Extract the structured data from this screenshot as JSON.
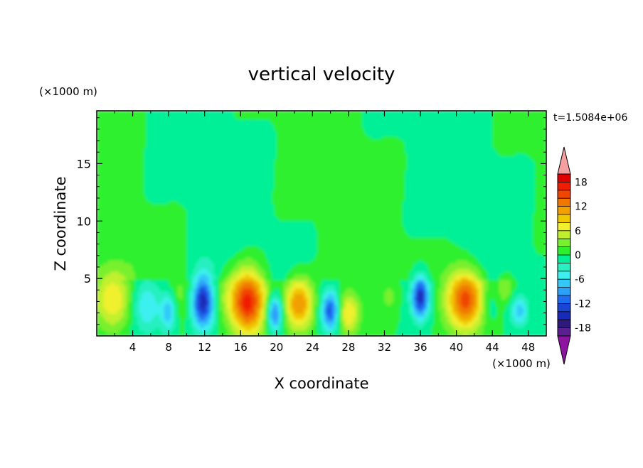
{
  "chart_data": {
    "type": "heatmap",
    "title": "vertical velocity",
    "xlabel": "X coordinate",
    "ylabel": "Z coordinate",
    "x_unit": "(×1000 m)",
    "y_unit": "(×1000 m)",
    "time_label": "t=1.5084e+06",
    "xlim": [
      0,
      50
    ],
    "ylim": [
      0,
      19.6
    ],
    "x_ticks": [
      4,
      8,
      12,
      16,
      20,
      24,
      28,
      32,
      36,
      40,
      44,
      48
    ],
    "y_ticks": [
      5,
      10,
      15
    ],
    "colorbar": {
      "levels": [
        -20,
        -18,
        -16,
        -14,
        -12,
        -10,
        -8,
        -6,
        -4,
        -2,
        0,
        2,
        4,
        6,
        8,
        10,
        12,
        14,
        16,
        18,
        20
      ],
      "tick_labels": [
        "18",
        "12",
        "6",
        "0",
        "-6",
        "-12",
        "-18"
      ],
      "tick_values": [
        18,
        12,
        6,
        0,
        -6,
        -12,
        -18
      ],
      "colors": [
        "#5a2092",
        "#2d1a7a",
        "#1a2ab8",
        "#1a46d8",
        "#1e6cf0",
        "#2da0f8",
        "#32c8f8",
        "#3cf0f0",
        "#28f0c0",
        "#00f098",
        "#2df02d",
        "#78f02d",
        "#c0f02d",
        "#f0f02d",
        "#f0c800",
        "#f0a000",
        "#f07800",
        "#f04600",
        "#f01e00",
        "#e00000"
      ],
      "extend_low_color": "#8c14a0",
      "extend_high_color": "#f5a0a0"
    },
    "cells": [
      {
        "x": 1.8,
        "z": 3.2,
        "sx": 1.5,
        "sz": 1.8,
        "v": 8
      },
      {
        "x": 5.5,
        "z": 2.6,
        "sx": 1.2,
        "sz": 1.6,
        "v": -6
      },
      {
        "x": 8.0,
        "z": 2.2,
        "sx": 0.6,
        "sz": 1.2,
        "v": -8
      },
      {
        "x": 9.3,
        "z": 3.5,
        "sx": 1.2,
        "sz": 1.5,
        "v": 3
      },
      {
        "x": 11.8,
        "z": 3.0,
        "sx": 0.9,
        "sz": 1.6,
        "v": -16
      },
      {
        "x": 14.0,
        "z": 3.5,
        "sx": 1.1,
        "sz": 1.3,
        "v": 2
      },
      {
        "x": 16.8,
        "z": 3.0,
        "sx": 1.4,
        "sz": 2.0,
        "v": 17
      },
      {
        "x": 19.8,
        "z": 2.0,
        "sx": 0.6,
        "sz": 1.1,
        "v": -12
      },
      {
        "x": 22.5,
        "z": 2.8,
        "sx": 1.1,
        "sz": 1.6,
        "v": 12
      },
      {
        "x": 26.0,
        "z": 2.2,
        "sx": 0.7,
        "sz": 1.2,
        "v": -13
      },
      {
        "x": 28.0,
        "z": 2.0,
        "sx": 0.9,
        "sz": 1.3,
        "v": 8
      },
      {
        "x": 32.5,
        "z": 3.5,
        "sx": 0.6,
        "sz": 0.8,
        "v": 3
      },
      {
        "x": 36.0,
        "z": 3.4,
        "sx": 0.7,
        "sz": 1.3,
        "v": -15
      },
      {
        "x": 41.0,
        "z": 3.2,
        "sx": 1.5,
        "sz": 1.9,
        "v": 15
      },
      {
        "x": 43.5,
        "z": 2.8,
        "sx": 0.7,
        "sz": 1.2,
        "v": -3
      },
      {
        "x": 45.5,
        "z": 4.2,
        "sx": 0.6,
        "sz": 0.9,
        "v": 4
      },
      {
        "x": 47.0,
        "z": 2.2,
        "sx": 0.7,
        "sz": 1.0,
        "v": -7
      }
    ]
  }
}
